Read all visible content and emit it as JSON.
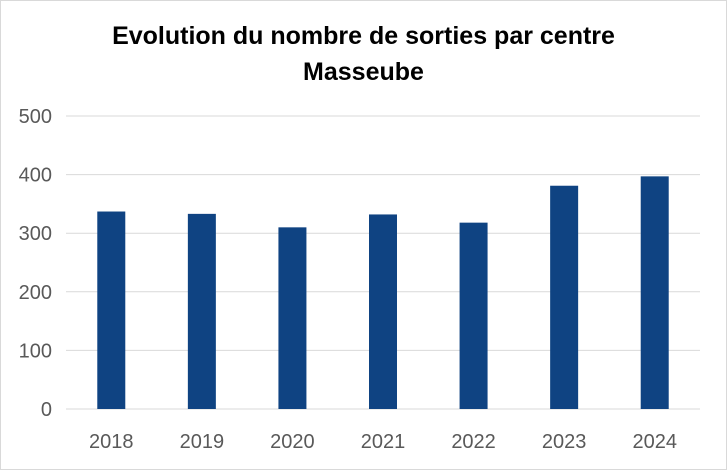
{
  "chart_data": {
    "type": "bar",
    "title": "Evolution du nombre de sorties par centre",
    "subtitle": "Masseube",
    "categories": [
      "2018",
      "2019",
      "2020",
      "2021",
      "2022",
      "2023",
      "2024"
    ],
    "values": [
      337,
      333,
      310,
      332,
      318,
      381,
      397
    ],
    "ylim": [
      0,
      500
    ],
    "yticks": [
      "0",
      "100",
      "200",
      "300",
      "400",
      "500"
    ],
    "grid": true,
    "legend": "none",
    "bar_color": "#0f4382",
    "grid_color": "#d9d9d9"
  }
}
